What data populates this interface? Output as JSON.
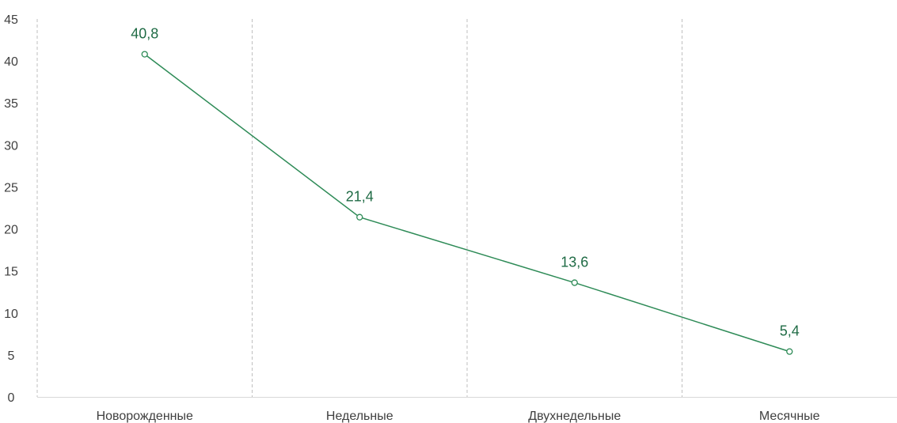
{
  "chart_data": {
    "type": "line",
    "title": "",
    "xlabel": "",
    "ylabel": "",
    "categories": [
      "Новорожденные",
      "Недельные",
      "Двухнедельные",
      "Месячные"
    ],
    "series": [
      {
        "values": [
          40.8,
          21.4,
          13.6,
          5.4
        ],
        "data_labels": [
          "40,8",
          "21,4",
          "13,6",
          "5,4"
        ],
        "color": "#2e8b57",
        "label_color": "#1f6b45",
        "marker": "hollow-circle"
      }
    ],
    "ylim": [
      0,
      45
    ],
    "yticks": [
      0,
      5,
      10,
      15,
      20,
      25,
      30,
      35,
      40,
      45
    ],
    "grid": {
      "vertical": true,
      "vertical_style": "dashed",
      "horizontal": false
    },
    "axis_color": "#d9d9d9",
    "grid_color": "#bfbfbf",
    "legend": "none"
  }
}
